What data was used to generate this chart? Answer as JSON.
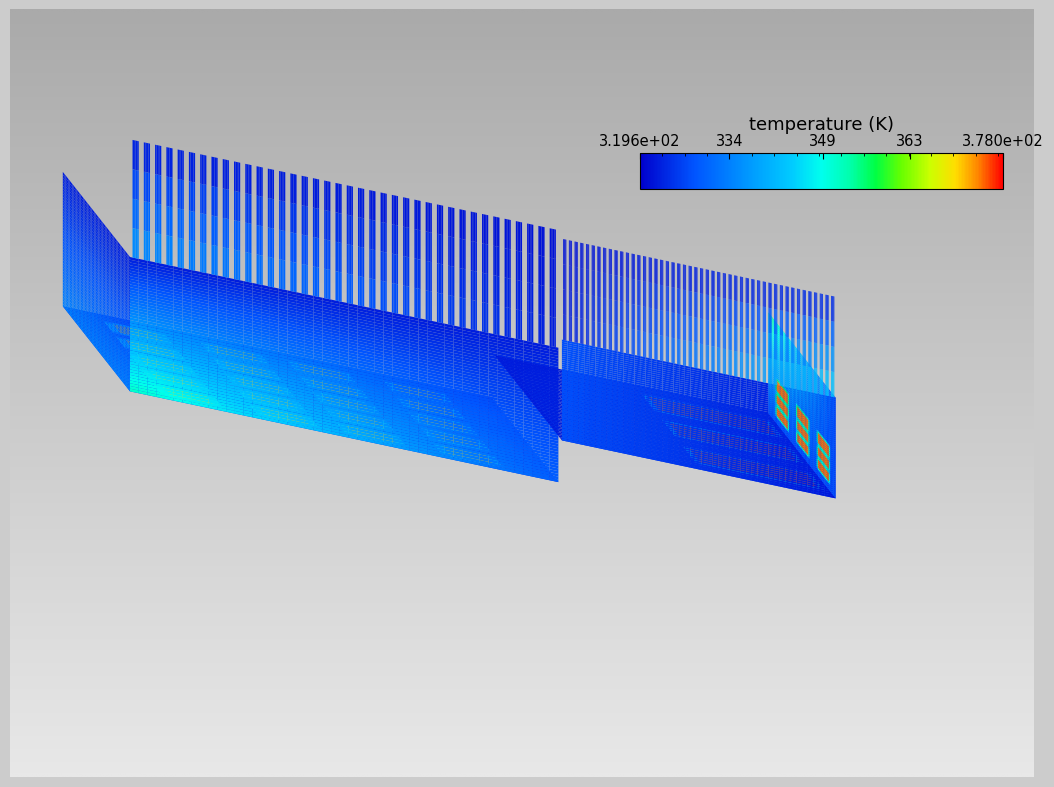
{
  "colorbar_label": "temperature (K)",
  "colorbar_ticks": [
    319.6,
    334,
    349,
    363,
    378.0
  ],
  "colorbar_ticklabels": [
    "3.196e+02",
    "334",
    "349",
    "363",
    "3.780e+02"
  ],
  "temp_min": 319.6,
  "temp_max": 378.0,
  "thermal_colors": [
    [
      0.0,
      "#0000cc"
    ],
    [
      0.15,
      "#0055ff"
    ],
    [
      0.3,
      "#0099ff"
    ],
    [
      0.42,
      "#00ccff"
    ],
    [
      0.5,
      "#00ffee"
    ],
    [
      0.58,
      "#00ffaa"
    ],
    [
      0.65,
      "#00ff44"
    ],
    [
      0.72,
      "#66ff00"
    ],
    [
      0.8,
      "#ccff00"
    ],
    [
      0.87,
      "#ffdd00"
    ],
    [
      0.93,
      "#ff8800"
    ],
    [
      1.0,
      "#ff0000"
    ]
  ]
}
